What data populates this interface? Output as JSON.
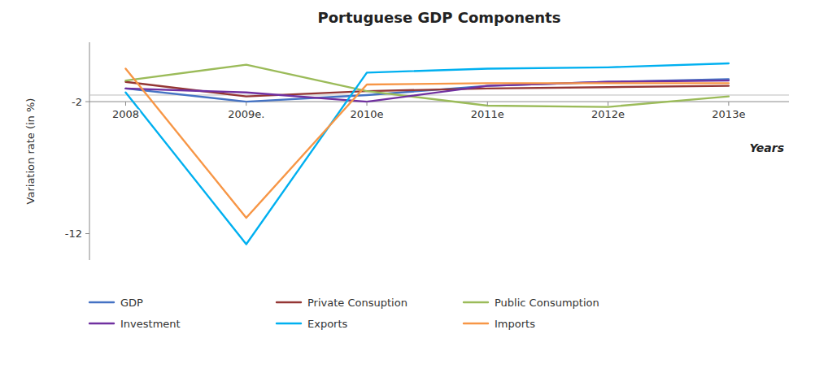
{
  "chart_data": {
    "type": "line",
    "title": "Portuguese GDP Components",
    "y_label": "Variation rate (in %)",
    "categories": [
      "2008",
      "2009e.",
      "2010e",
      "2011e",
      "2012e",
      "2013e"
    ],
    "series": [
      {
        "name": "GDP",
        "color": "#4472C4",
        "values": [
          -1.0,
          -2.0,
          -1.5,
          -0.8,
          -0.5,
          -0.3
        ]
      },
      {
        "name": "Private Consuption",
        "color": "#943634",
        "values": [
          -0.5,
          -1.6,
          -1.2,
          -1.0,
          -0.9,
          -0.8
        ]
      },
      {
        "name": "Public Consumption",
        "color": "#9BBB59",
        "values": [
          -0.4,
          0.8,
          -1.2,
          -2.3,
          -2.4,
          -1.6
        ]
      },
      {
        "name": "Investment",
        "color": "#7030A0",
        "values": [
          -1.0,
          -1.3,
          -2.0,
          -0.8,
          -0.5,
          -0.4
        ]
      },
      {
        "name": "Exports",
        "color": "#00B0F0",
        "values": [
          -1.3,
          -12.8,
          0.2,
          0.5,
          0.6,
          0.9
        ]
      },
      {
        "name": "Imports",
        "color": "#F79646",
        "values": [
          0.5,
          -10.8,
          -0.7,
          -0.6,
          -0.6,
          -0.6
        ]
      }
    ],
    "ylim": [
      -14,
      2.5
    ],
    "yticks": [
      -12,
      -2
    ],
    "reference_line": -1.5,
    "xaxis_crossing": -2,
    "annotations": [
      "Years"
    ],
    "grid": false,
    "legend": "bottom"
  }
}
